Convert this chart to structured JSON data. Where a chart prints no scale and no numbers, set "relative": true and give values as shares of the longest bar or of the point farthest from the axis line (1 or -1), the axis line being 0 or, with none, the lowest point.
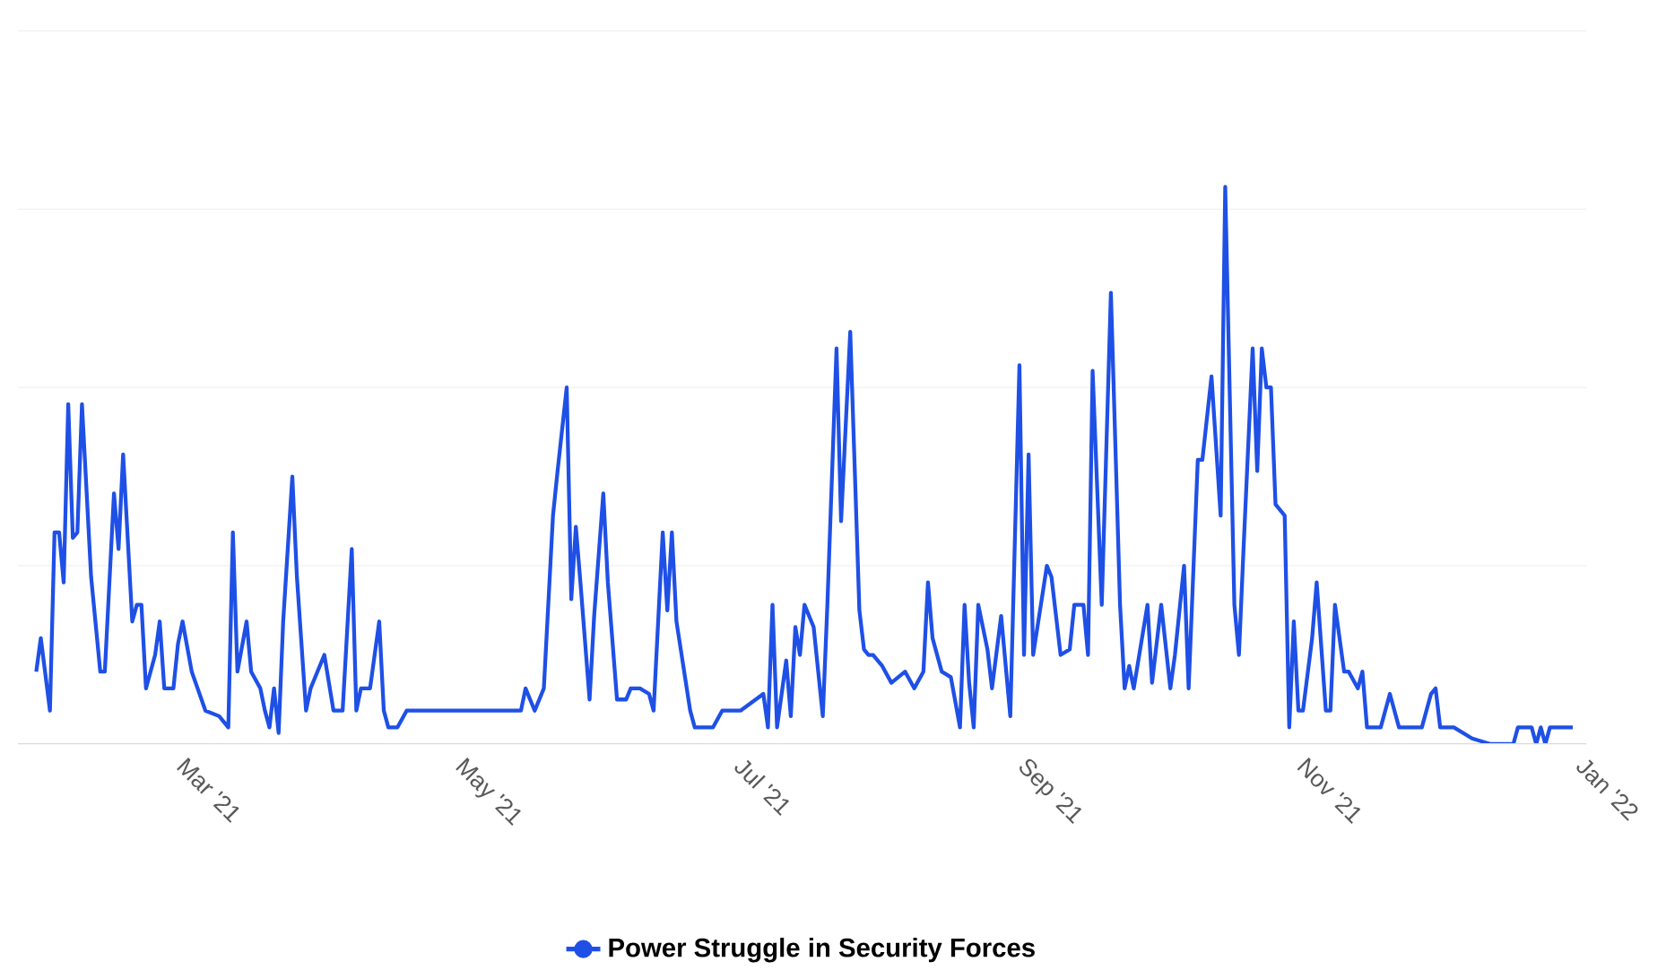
{
  "chart_data": {
    "type": "line",
    "relative": true,
    "grid": "y",
    "legend": "bottom",
    "xlim": [
      "2021-01-23",
      "2022-01-01"
    ],
    "xticks": [
      {
        "value": "2021-03-01",
        "label": "Mar '21"
      },
      {
        "value": "2021-05-01",
        "label": "May '21"
      },
      {
        "value": "2021-07-01",
        "label": "Jul '21"
      },
      {
        "value": "2021-09-01",
        "label": "Sep '21"
      },
      {
        "value": "2021-11-01",
        "label": "Nov '21"
      },
      {
        "value": "2022-01-01",
        "label": "Jan '22"
      }
    ],
    "x": [
      "2021-01-27",
      "2021-01-28",
      "2021-01-30",
      "2021-01-31",
      "2021-02-01",
      "2021-02-02",
      "2021-02-03",
      "2021-02-04",
      "2021-02-05",
      "2021-02-06",
      "2021-02-08",
      "2021-02-10",
      "2021-02-11",
      "2021-02-13",
      "2021-02-14",
      "2021-02-15",
      "2021-02-17",
      "2021-02-18",
      "2021-02-19",
      "2021-02-20",
      "2021-02-22",
      "2021-02-23",
      "2021-02-24",
      "2021-02-26",
      "2021-02-27",
      "2021-02-28",
      "2021-03-02",
      "2021-03-05",
      "2021-03-08",
      "2021-03-10",
      "2021-03-11",
      "2021-03-12",
      "2021-03-14",
      "2021-03-15",
      "2021-03-17",
      "2021-03-18",
      "2021-03-19",
      "2021-03-20",
      "2021-03-21",
      "2021-03-22",
      "2021-03-24",
      "2021-03-25",
      "2021-03-27",
      "2021-03-28",
      "2021-03-31",
      "2021-04-02",
      "2021-04-04",
      "2021-04-06",
      "2021-04-07",
      "2021-04-08",
      "2021-04-10",
      "2021-04-12",
      "2021-04-13",
      "2021-04-14",
      "2021-04-16",
      "2021-04-18",
      "2021-05-13",
      "2021-05-14",
      "2021-05-16",
      "2021-05-18",
      "2021-05-20",
      "2021-05-21",
      "2021-05-23",
      "2021-05-24",
      "2021-05-25",
      "2021-05-26",
      "2021-05-28",
      "2021-05-29",
      "2021-05-31",
      "2021-06-01",
      "2021-06-03",
      "2021-06-05",
      "2021-06-06",
      "2021-06-08",
      "2021-06-10",
      "2021-06-11",
      "2021-06-13",
      "2021-06-14",
      "2021-06-15",
      "2021-06-16",
      "2021-06-19",
      "2021-06-20",
      "2021-06-24",
      "2021-06-26",
      "2021-06-30",
      "2021-07-05",
      "2021-07-06",
      "2021-07-07",
      "2021-07-08",
      "2021-07-10",
      "2021-07-11",
      "2021-07-12",
      "2021-07-13",
      "2021-07-14",
      "2021-07-16",
      "2021-07-18",
      "2021-07-19",
      "2021-07-21",
      "2021-07-22",
      "2021-07-24",
      "2021-07-26",
      "2021-07-27",
      "2021-07-28",
      "2021-07-29",
      "2021-07-31",
      "2021-08-02",
      "2021-08-05",
      "2021-08-07",
      "2021-08-09",
      "2021-08-10",
      "2021-08-11",
      "2021-08-13",
      "2021-08-15",
      "2021-08-17",
      "2021-08-18",
      "2021-08-19",
      "2021-08-20",
      "2021-08-21",
      "2021-08-23",
      "2021-08-24",
      "2021-08-26",
      "2021-08-28",
      "2021-08-30",
      "2021-08-31",
      "2021-09-01",
      "2021-09-02",
      "2021-09-05",
      "2021-09-06",
      "2021-09-08",
      "2021-09-10",
      "2021-09-11",
      "2021-09-13",
      "2021-09-14",
      "2021-09-15",
      "2021-09-17",
      "2021-09-19",
      "2021-09-21",
      "2021-09-22",
      "2021-09-23",
      "2021-09-24",
      "2021-09-27",
      "2021-09-28",
      "2021-09-30",
      "2021-10-02",
      "2021-10-03",
      "2021-10-05",
      "2021-10-06",
      "2021-10-08",
      "2021-10-09",
      "2021-10-11",
      "2021-10-13",
      "2021-10-14",
      "2021-10-16",
      "2021-10-17",
      "2021-10-18",
      "2021-10-20",
      "2021-10-21",
      "2021-10-22",
      "2021-10-23",
      "2021-10-24",
      "2021-10-25",
      "2021-10-27",
      "2021-10-28",
      "2021-10-29",
      "2021-10-30",
      "2021-10-31",
      "2021-11-02",
      "2021-11-03",
      "2021-11-05",
      "2021-11-06",
      "2021-11-07",
      "2021-11-09",
      "2021-11-10",
      "2021-11-12",
      "2021-11-13",
      "2021-11-14",
      "2021-11-17",
      "2021-11-19",
      "2021-11-21",
      "2021-11-26",
      "2021-11-28",
      "2021-11-29",
      "2021-11-30",
      "2021-12-03",
      "2021-12-07",
      "2021-12-11",
      "2021-12-16",
      "2021-12-17",
      "2021-12-20",
      "2021-12-21",
      "2021-12-22",
      "2021-12-23",
      "2021-12-24",
      "2021-12-29"
    ],
    "series": [
      {
        "name": "Power Struggle in Security Forces",
        "color": "#1f50e6",
        "line_style": "solid",
        "values": [
          0.13,
          0.19,
          0.06,
          0.38,
          0.38,
          0.29,
          0.61,
          0.37,
          0.38,
          0.61,
          0.3,
          0.13,
          0.13,
          0.45,
          0.35,
          0.52,
          0.22,
          0.25,
          0.25,
          0.1,
          0.16,
          0.22,
          0.1,
          0.1,
          0.18,
          0.22,
          0.13,
          0.06,
          0.05,
          0.03,
          0.38,
          0.13,
          0.22,
          0.13,
          0.1,
          0.06,
          0.03,
          0.1,
          0.02,
          0.22,
          0.48,
          0.3,
          0.06,
          0.1,
          0.16,
          0.06,
          0.06,
          0.35,
          0.06,
          0.1,
          0.1,
          0.22,
          0.06,
          0.03,
          0.03,
          0.06,
          0.06,
          0.1,
          0.06,
          0.1,
          0.41,
          0.49,
          0.64,
          0.26,
          0.39,
          0.29,
          0.08,
          0.23,
          0.45,
          0.29,
          0.08,
          0.08,
          0.1,
          0.1,
          0.09,
          0.06,
          0.38,
          0.24,
          0.38,
          0.22,
          0.06,
          0.03,
          0.03,
          0.06,
          0.06,
          0.09,
          0.03,
          0.25,
          0.03,
          0.15,
          0.05,
          0.21,
          0.16,
          0.25,
          0.21,
          0.05,
          0.25,
          0.71,
          0.4,
          0.74,
          0.24,
          0.17,
          0.16,
          0.16,
          0.14,
          0.11,
          0.13,
          0.1,
          0.13,
          0.29,
          0.19,
          0.13,
          0.12,
          0.03,
          0.25,
          0.11,
          0.03,
          0.25,
          0.17,
          0.1,
          0.23,
          0.05,
          0.68,
          0.16,
          0.52,
          0.16,
          0.32,
          0.3,
          0.16,
          0.17,
          0.25,
          0.25,
          0.16,
          0.67,
          0.25,
          0.81,
          0.25,
          0.1,
          0.14,
          0.1,
          0.25,
          0.11,
          0.25,
          0.1,
          0.16,
          0.32,
          0.1,
          0.51,
          0.51,
          0.66,
          0.41,
          1,
          0.25,
          0.16,
          0.35,
          0.71,
          0.49,
          0.71,
          0.64,
          0.64,
          0.43,
          0.41,
          0.03,
          0.22,
          0.06,
          0.06,
          0.19,
          0.29,
          0.06,
          0.06,
          0.25,
          0.13,
          0.13,
          0.1,
          0.13,
          0.03,
          0.03,
          0.09,
          0.03,
          0.03,
          0.09,
          0.1,
          0.03,
          0.03,
          0.01,
          0,
          0,
          0.03,
          0.03,
          0,
          0.03,
          0,
          0.03,
          0.03
        ]
      }
    ]
  }
}
